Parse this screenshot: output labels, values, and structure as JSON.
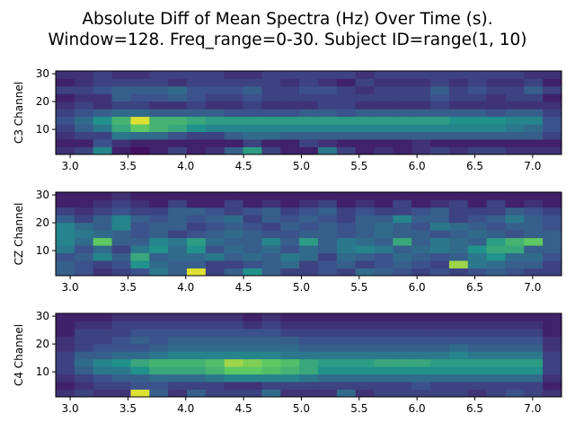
{
  "title_line1": "Absolute Diff of Mean Spectra (Hz) Over Time (s).",
  "title_line2": "Window=128. Freq_range=0-30. Subject ID=range(1, 10)",
  "chart_data": [
    {
      "type": "heatmap",
      "ylabel": "C3 Channel",
      "xlim": [
        2.875,
        7.25
      ],
      "ylim": [
        1,
        31
      ],
      "x_ticks": [
        "3.0",
        "3.5",
        "4.0",
        "4.5",
        "5.0",
        "5.5",
        "6.0",
        "6.5",
        "7.0"
      ],
      "y_ticks": [
        "10",
        "20",
        "30"
      ],
      "colormap": "viridis",
      "rows_low_to_high": [
        [
          0.15,
          0.2,
          0.45,
          0.1,
          0.05,
          0.1,
          0.2,
          0.1,
          0.15,
          0.3,
          0.55,
          0.2,
          0.1,
          0.1,
          0.4,
          0.2,
          0.1,
          0.15,
          0.1,
          0.15,
          0.2,
          0.15,
          0.2,
          0.2,
          0.15,
          0.15,
          0.15
        ],
        [
          0.1,
          0.1,
          0.25,
          0.15,
          0.1,
          0.1,
          0.1,
          0.1,
          0.1,
          0.1,
          0.2,
          0.1,
          0.1,
          0.2,
          0.15,
          0.1,
          0.1,
          0.1,
          0.1,
          0.15,
          0.1,
          0.1,
          0.1,
          0.1,
          0.1,
          0.1,
          0.1
        ],
        [
          0.15,
          0.2,
          0.2,
          0.4,
          0.35,
          0.35,
          0.25,
          0.2,
          0.2,
          0.3,
          0.35,
          0.35,
          0.3,
          0.3,
          0.3,
          0.3,
          0.3,
          0.3,
          0.3,
          0.3,
          0.3,
          0.3,
          0.3,
          0.3,
          0.3,
          0.3,
          0.2
        ],
        [
          0.2,
          0.3,
          0.4,
          0.6,
          0.75,
          0.65,
          0.6,
          0.5,
          0.45,
          0.45,
          0.45,
          0.45,
          0.45,
          0.45,
          0.45,
          0.45,
          0.45,
          0.45,
          0.45,
          0.45,
          0.45,
          0.45,
          0.45,
          0.45,
          0.4,
          0.35,
          0.25
        ],
        [
          0.25,
          0.35,
          0.5,
          0.65,
          0.95,
          0.65,
          0.65,
          0.6,
          0.55,
          0.55,
          0.55,
          0.55,
          0.55,
          0.55,
          0.55,
          0.55,
          0.55,
          0.55,
          0.55,
          0.55,
          0.55,
          0.5,
          0.5,
          0.5,
          0.45,
          0.45,
          0.25
        ],
        [
          0.2,
          0.25,
          0.3,
          0.35,
          0.35,
          0.3,
          0.3,
          0.3,
          0.3,
          0.25,
          0.25,
          0.25,
          0.25,
          0.3,
          0.3,
          0.25,
          0.3,
          0.3,
          0.3,
          0.3,
          0.3,
          0.3,
          0.3,
          0.25,
          0.3,
          0.3,
          0.2
        ],
        [
          0.15,
          0.2,
          0.15,
          0.2,
          0.2,
          0.15,
          0.15,
          0.2,
          0.15,
          0.15,
          0.2,
          0.15,
          0.15,
          0.15,
          0.2,
          0.2,
          0.15,
          0.15,
          0.15,
          0.15,
          0.2,
          0.15,
          0.15,
          0.15,
          0.15,
          0.15,
          0.15
        ],
        [
          0.1,
          0.15,
          0.15,
          0.3,
          0.25,
          0.25,
          0.3,
          0.25,
          0.2,
          0.2,
          0.25,
          0.2,
          0.2,
          0.2,
          0.2,
          0.2,
          0.2,
          0.2,
          0.2,
          0.2,
          0.25,
          0.2,
          0.2,
          0.15,
          0.2,
          0.2,
          0.1
        ],
        [
          0.2,
          0.2,
          0.25,
          0.3,
          0.3,
          0.3,
          0.35,
          0.25,
          0.25,
          0.25,
          0.3,
          0.2,
          0.2,
          0.25,
          0.25,
          0.2,
          0.15,
          0.2,
          0.2,
          0.2,
          0.3,
          0.2,
          0.25,
          0.2,
          0.2,
          0.3,
          0.2
        ],
        [
          0.1,
          0.15,
          0.2,
          0.2,
          0.2,
          0.2,
          0.15,
          0.2,
          0.2,
          0.2,
          0.2,
          0.2,
          0.15,
          0.2,
          0.15,
          0.1,
          0.2,
          0.15,
          0.15,
          0.15,
          0.2,
          0.15,
          0.2,
          0.15,
          0.15,
          0.2,
          0.1
        ],
        [
          0.15,
          0.15,
          0.2,
          0.15,
          0.15,
          0.2,
          0.2,
          0.2,
          0.2,
          0.15,
          0.15,
          0.2,
          0.2,
          0.2,
          0.2,
          0.2,
          0.15,
          0.2,
          0.2,
          0.2,
          0.2,
          0.2,
          0.2,
          0.2,
          0.2,
          0.15,
          0.15
        ]
      ]
    },
    {
      "type": "heatmap",
      "ylabel": "CZ Channel",
      "xlim": [
        2.875,
        7.25
      ],
      "ylim": [
        1,
        31
      ],
      "x_ticks": [
        "3.0",
        "3.5",
        "4.0",
        "4.5",
        "5.0",
        "5.5",
        "6.0",
        "6.5",
        "7.0"
      ],
      "y_ticks": [
        "10",
        "20",
        "30"
      ],
      "colormap": "viridis",
      "rows_low_to_high": [
        [
          0.3,
          0.25,
          0.15,
          0.2,
          0.25,
          0.4,
          0.3,
          0.95,
          0.2,
          0.3,
          0.5,
          0.3,
          0.2,
          0.2,
          0.25,
          0.2,
          0.35,
          0.3,
          0.25,
          0.2,
          0.25,
          0.2,
          0.25,
          0.3,
          0.25,
          0.2,
          0.2
        ],
        [
          0.3,
          0.25,
          0.2,
          0.25,
          0.5,
          0.35,
          0.3,
          0.3,
          0.2,
          0.2,
          0.25,
          0.3,
          0.35,
          0.2,
          0.25,
          0.3,
          0.2,
          0.25,
          0.3,
          0.25,
          0.2,
          0.85,
          0.4,
          0.35,
          0.3,
          0.3,
          0.2
        ],
        [
          0.25,
          0.3,
          0.45,
          0.3,
          0.6,
          0.3,
          0.35,
          0.35,
          0.4,
          0.3,
          0.35,
          0.3,
          0.4,
          0.35,
          0.2,
          0.35,
          0.3,
          0.25,
          0.35,
          0.3,
          0.25,
          0.3,
          0.4,
          0.5,
          0.35,
          0.35,
          0.25
        ],
        [
          0.4,
          0.25,
          0.35,
          0.2,
          0.4,
          0.5,
          0.35,
          0.5,
          0.25,
          0.35,
          0.3,
          0.35,
          0.25,
          0.35,
          0.3,
          0.4,
          0.45,
          0.4,
          0.3,
          0.35,
          0.4,
          0.35,
          0.5,
          0.6,
          0.6,
          0.3,
          0.3
        ],
        [
          0.45,
          0.35,
          0.75,
          0.3,
          0.3,
          0.45,
          0.4,
          0.55,
          0.35,
          0.3,
          0.3,
          0.45,
          0.3,
          0.55,
          0.3,
          0.4,
          0.35,
          0.3,
          0.6,
          0.3,
          0.4,
          0.35,
          0.3,
          0.55,
          0.65,
          0.75,
          0.3
        ],
        [
          0.45,
          0.4,
          0.35,
          0.3,
          0.25,
          0.3,
          0.2,
          0.25,
          0.3,
          0.35,
          0.3,
          0.25,
          0.25,
          0.3,
          0.3,
          0.25,
          0.3,
          0.35,
          0.3,
          0.3,
          0.25,
          0.3,
          0.35,
          0.3,
          0.25,
          0.3,
          0.3
        ],
        [
          0.45,
          0.35,
          0.3,
          0.45,
          0.25,
          0.3,
          0.3,
          0.2,
          0.25,
          0.3,
          0.25,
          0.2,
          0.3,
          0.25,
          0.3,
          0.25,
          0.3,
          0.35,
          0.3,
          0.25,
          0.4,
          0.35,
          0.3,
          0.25,
          0.3,
          0.3,
          0.25
        ],
        [
          0.3,
          0.2,
          0.3,
          0.45,
          0.3,
          0.25,
          0.3,
          0.25,
          0.3,
          0.35,
          0.2,
          0.3,
          0.25,
          0.3,
          0.25,
          0.2,
          0.3,
          0.3,
          0.45,
          0.3,
          0.3,
          0.2,
          0.25,
          0.3,
          0.4,
          0.3,
          0.25
        ],
        [
          0.2,
          0.15,
          0.2,
          0.25,
          0.2,
          0.2,
          0.3,
          0.3,
          0.25,
          0.2,
          0.25,
          0.3,
          0.2,
          0.25,
          0.3,
          0.2,
          0.25,
          0.2,
          0.2,
          0.25,
          0.3,
          0.2,
          0.2,
          0.2,
          0.3,
          0.25,
          0.2
        ],
        [
          0.1,
          0.1,
          0.15,
          0.2,
          0.15,
          0.1,
          0.2,
          0.1,
          0.1,
          0.2,
          0.1,
          0.15,
          0.1,
          0.15,
          0.2,
          0.1,
          0.15,
          0.1,
          0.2,
          0.1,
          0.15,
          0.2,
          0.1,
          0.2,
          0.1,
          0.15,
          0.1
        ],
        [
          0.1,
          0.1,
          0.1,
          0.15,
          0.1,
          0.1,
          0.1,
          0.1,
          0.1,
          0.1,
          0.1,
          0.1,
          0.1,
          0.1,
          0.1,
          0.1,
          0.1,
          0.1,
          0.1,
          0.1,
          0.1,
          0.1,
          0.1,
          0.1,
          0.1,
          0.1,
          0.1
        ]
      ]
    },
    {
      "type": "heatmap",
      "ylabel": "C4 Channel",
      "xlim": [
        2.875,
        7.25
      ],
      "ylim": [
        1,
        31
      ],
      "x_ticks": [
        "3.0",
        "3.5",
        "4.0",
        "4.5",
        "5.0",
        "5.5",
        "6.0",
        "6.5",
        "7.0"
      ],
      "y_ticks": [
        "10",
        "20",
        "30"
      ],
      "colormap": "viridis",
      "rows_low_to_high": [
        [
          0.15,
          0.2,
          0.15,
          0.15,
          0.95,
          0.3,
          0.15,
          0.3,
          0.2,
          0.2,
          0.2,
          0.35,
          0.15,
          0.15,
          0.15,
          0.35,
          0.15,
          0.2,
          0.2,
          0.2,
          0.2,
          0.2,
          0.15,
          0.2,
          0.25,
          0.2,
          0.15
        ],
        [
          0.1,
          0.15,
          0.2,
          0.2,
          0.25,
          0.25,
          0.2,
          0.2,
          0.2,
          0.15,
          0.15,
          0.2,
          0.2,
          0.2,
          0.2,
          0.2,
          0.2,
          0.2,
          0.2,
          0.25,
          0.2,
          0.2,
          0.2,
          0.2,
          0.2,
          0.2,
          0.1
        ],
        [
          0.15,
          0.2,
          0.25,
          0.3,
          0.3,
          0.35,
          0.35,
          0.35,
          0.4,
          0.45,
          0.45,
          0.45,
          0.45,
          0.4,
          0.35,
          0.35,
          0.35,
          0.35,
          0.35,
          0.35,
          0.35,
          0.35,
          0.35,
          0.35,
          0.35,
          0.35,
          0.15
        ],
        [
          0.2,
          0.3,
          0.4,
          0.4,
          0.5,
          0.6,
          0.6,
          0.6,
          0.65,
          0.75,
          0.75,
          0.7,
          0.65,
          0.6,
          0.5,
          0.5,
          0.5,
          0.5,
          0.5,
          0.5,
          0.5,
          0.5,
          0.5,
          0.5,
          0.5,
          0.5,
          0.2
        ],
        [
          0.2,
          0.35,
          0.45,
          0.5,
          0.6,
          0.65,
          0.65,
          0.65,
          0.7,
          0.85,
          0.8,
          0.75,
          0.7,
          0.6,
          0.55,
          0.55,
          0.55,
          0.6,
          0.6,
          0.6,
          0.55,
          0.55,
          0.55,
          0.55,
          0.55,
          0.55,
          0.2
        ],
        [
          0.2,
          0.3,
          0.3,
          0.35,
          0.35,
          0.4,
          0.45,
          0.45,
          0.45,
          0.45,
          0.45,
          0.45,
          0.4,
          0.4,
          0.4,
          0.4,
          0.4,
          0.4,
          0.4,
          0.4,
          0.4,
          0.45,
          0.4,
          0.4,
          0.4,
          0.4,
          0.2
        ],
        [
          0.15,
          0.2,
          0.25,
          0.25,
          0.25,
          0.3,
          0.35,
          0.35,
          0.35,
          0.35,
          0.35,
          0.35,
          0.35,
          0.3,
          0.3,
          0.3,
          0.3,
          0.3,
          0.3,
          0.3,
          0.3,
          0.35,
          0.3,
          0.3,
          0.3,
          0.3,
          0.15
        ],
        [
          0.15,
          0.2,
          0.2,
          0.25,
          0.3,
          0.25,
          0.3,
          0.3,
          0.3,
          0.3,
          0.3,
          0.3,
          0.3,
          0.25,
          0.25,
          0.25,
          0.25,
          0.25,
          0.25,
          0.25,
          0.25,
          0.25,
          0.25,
          0.25,
          0.25,
          0.25,
          0.15
        ],
        [
          0.1,
          0.2,
          0.2,
          0.2,
          0.25,
          0.25,
          0.25,
          0.25,
          0.25,
          0.25,
          0.25,
          0.25,
          0.2,
          0.2,
          0.2,
          0.2,
          0.2,
          0.2,
          0.2,
          0.2,
          0.2,
          0.2,
          0.2,
          0.2,
          0.2,
          0.2,
          0.1
        ],
        [
          0.1,
          0.15,
          0.15,
          0.2,
          0.2,
          0.2,
          0.2,
          0.2,
          0.2,
          0.2,
          0.15,
          0.2,
          0.15,
          0.15,
          0.15,
          0.15,
          0.15,
          0.15,
          0.15,
          0.15,
          0.15,
          0.15,
          0.15,
          0.15,
          0.15,
          0.15,
          0.1
        ],
        [
          0.1,
          0.1,
          0.1,
          0.15,
          0.15,
          0.15,
          0.15,
          0.15,
          0.15,
          0.15,
          0.1,
          0.15,
          0.1,
          0.1,
          0.1,
          0.1,
          0.1,
          0.1,
          0.1,
          0.1,
          0.1,
          0.1,
          0.1,
          0.1,
          0.1,
          0.1,
          0.1
        ]
      ]
    }
  ]
}
